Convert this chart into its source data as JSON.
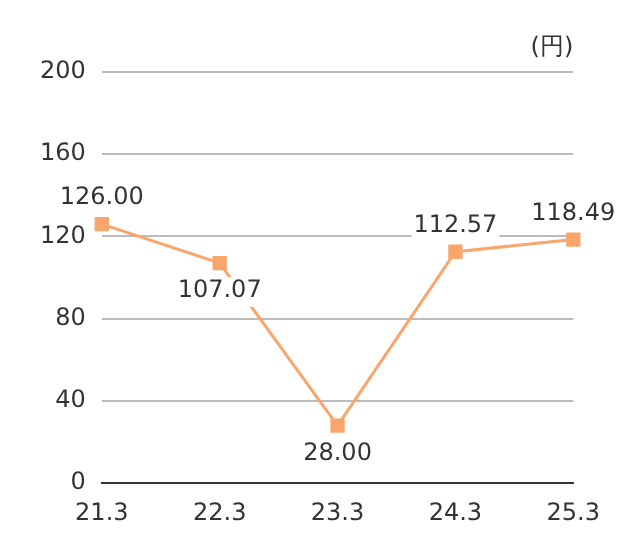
{
  "chart_data": {
    "type": "line",
    "ylabel": "(円)",
    "categories": [
      "21.3",
      "22.3",
      "23.3",
      "24.3",
      "25.3"
    ],
    "series": [
      {
        "color": "#f9a56b",
        "values": [
          126.0,
          107.07,
          28.0,
          112.57,
          118.49
        ],
        "value_labels": [
          "126.00",
          "107.07",
          "28.00",
          "112.57",
          "118.49"
        ]
      }
    ],
    "ylim": [
      0,
      200
    ],
    "yticks": [
      0,
      40,
      80,
      120,
      160,
      200
    ],
    "grid": "y",
    "marker": "square",
    "legend": false
  }
}
